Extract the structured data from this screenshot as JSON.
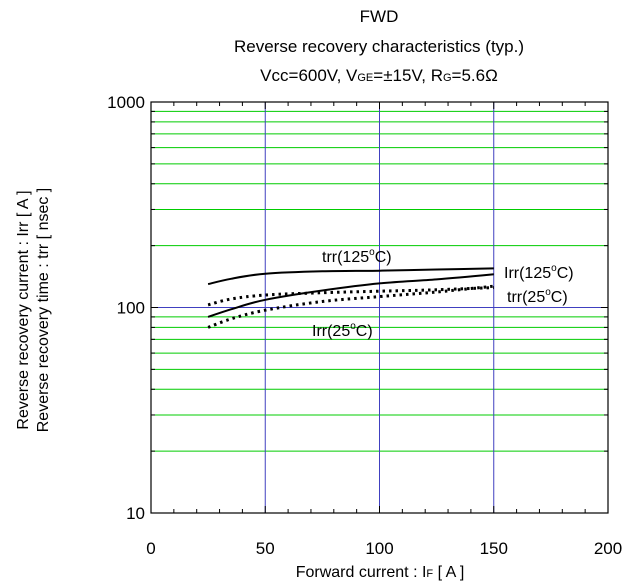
{
  "chart_data": {
    "type": "line",
    "title": "FWD",
    "subtitle": "Reverse recovery characteristics (typ.)",
    "conditions": {
      "vcc": "Vcc=600V, ",
      "vge_main": "V",
      "vge_sub": "GE",
      "vge_val": "=±15V, ",
      "rg_main": "R",
      "rg_sub": "G",
      "rg_val": "=5.6Ω"
    },
    "xlabel": {
      "main": "Forward current : I",
      "sub": "F",
      "unit": " [ A ]"
    },
    "ylabel": [
      "Reverse recovery current : Irr [ A ]",
      "Reverse recovery time : trr [ nsec ]"
    ],
    "xlim": [
      0,
      200
    ],
    "ylim": [
      10,
      1000
    ],
    "yscale": "log",
    "x_ticks": [
      0,
      50,
      100,
      150,
      200
    ],
    "y_ticks": [
      10,
      100,
      1000
    ],
    "grid": true,
    "series": [
      {
        "name": "trr(125°C)",
        "style": "solid",
        "x": [
          25,
          35,
          50,
          75,
          100,
          125,
          150
        ],
        "y": [
          130,
          138,
          146,
          150,
          151,
          153,
          155
        ]
      },
      {
        "name": "Irr(125°C)",
        "style": "solid",
        "x": [
          25,
          35,
          50,
          75,
          100,
          125,
          150
        ],
        "y": [
          90,
          98,
          109,
          121,
          131,
          137,
          145
        ]
      },
      {
        "name": "trr(25°C)",
        "style": "dotted",
        "x": [
          25,
          35,
          50,
          75,
          100,
          125,
          150
        ],
        "y": [
          103,
          110,
          115,
          118,
          120,
          122,
          125
        ]
      },
      {
        "name": "Irr(25°C)",
        "style": "dotted",
        "x": [
          25,
          35,
          50,
          75,
          100,
          125,
          150
        ],
        "y": [
          80,
          88,
          97,
          107,
          113,
          119,
          127
        ]
      }
    ],
    "labels": [
      {
        "series": 0,
        "pre": "trr(125",
        "sup": "o",
        "post": "C)"
      },
      {
        "series": 1,
        "pre": "Irr(125",
        "sup": "o",
        "post": "C)"
      },
      {
        "series": 2,
        "pre": "trr(25",
        "sup": "o",
        "post": "C)"
      },
      {
        "series": 3,
        "pre": "Irr(25",
        "sup": "o",
        "post": "C)"
      }
    ],
    "colors": {
      "minor_grid": "#00cc00",
      "major_grid": "#4040c0",
      "frame": "#000000",
      "line": "#000000"
    }
  }
}
